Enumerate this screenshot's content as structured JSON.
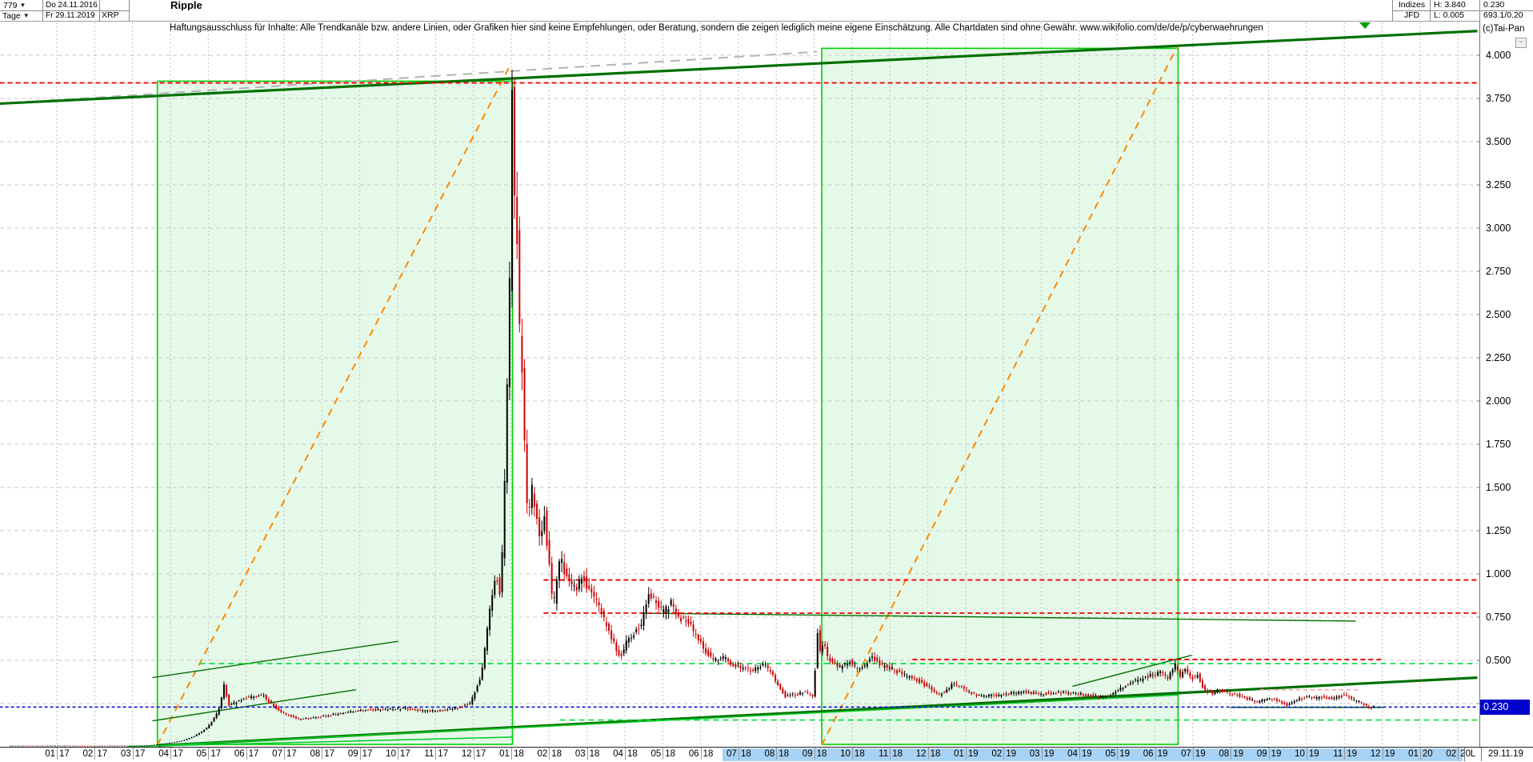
{
  "header": {
    "bar_count": "779",
    "period": "Tage",
    "date_from": "Do 24.11.2016",
    "date_to": "Fr 29.11.2019",
    "symbol": "XRP",
    "title": "Ripple",
    "right_panel": {
      "row1_label": "Indizes",
      "row2_label": "JFD",
      "high": "H: 3.840",
      "low": "L: 0.005",
      "last": "0.230",
      "extra": "693.1/0.20"
    },
    "copyright": "(c)Tai-Pan",
    "collapse_icon_glyph": "−"
  },
  "disclaimer": "Haftungsausschluss für Inhalte: Alle Trendkanäle bzw. andere Linien, oder Grafiken hier sind keine Empfehlungen, oder Beratung, sondern die zeigen lediglich meine eigene Einschätzung. Alle Chartdaten sind ohne Gewähr.  www.wikifolio.com/de/de/p/cyberwaehrungen",
  "status_bar": {
    "scale_toggle": "L",
    "current_date": "29.11.19"
  },
  "price_axis": {
    "ticks": [
      "4.000",
      "3.750",
      "3.500",
      "3.250",
      "3.000",
      "2.750",
      "2.500",
      "2.250",
      "2.000",
      "1.750",
      "1.500",
      "1.250",
      "1.000",
      "0.750",
      "0.500",
      "0.250"
    ],
    "last_price_badge": "0.230"
  },
  "chart_data": {
    "type": "candlestick",
    "title": "Ripple (XRP) Tageschart",
    "instrument": "Ripple",
    "symbol": "XRP",
    "period": "Tage",
    "date_from": "24.11.2016",
    "date_to": "29.11.2019",
    "high": 3.84,
    "low": 0.005,
    "last": 0.23,
    "ylim": [
      0,
      4.2
    ],
    "ytick_step": 0.25,
    "grid": true,
    "months": [
      "01.17",
      "02.17",
      "03.17",
      "04.17",
      "05.17",
      "06.17",
      "07.17",
      "08.17",
      "09.17",
      "10.17",
      "11.17",
      "12.17",
      "01.18",
      "02.18",
      "03.18",
      "04.18",
      "05.18",
      "06.18",
      "07.18",
      "08.18",
      "09.18",
      "10.18",
      "11.18",
      "12.18",
      "01.19",
      "02.19",
      "03.19",
      "04.19",
      "05.19",
      "06.19",
      "07.19",
      "08.19",
      "09.19",
      "10.19",
      "11.19",
      "12.19",
      "01.20",
      "02.20"
    ],
    "keyframes_day_price": [
      [
        0,
        0.006
      ],
      [
        40,
        0.0065
      ],
      [
        80,
        0.006
      ],
      [
        110,
        0.007
      ],
      [
        127,
        0.02
      ],
      [
        140,
        0.035
      ],
      [
        152,
        0.07
      ],
      [
        160,
        0.11
      ],
      [
        170,
        0.22
      ],
      [
        174,
        0.36
      ],
      [
        178,
        0.24
      ],
      [
        190,
        0.28
      ],
      [
        205,
        0.3
      ],
      [
        220,
        0.2
      ],
      [
        234,
        0.16
      ],
      [
        250,
        0.17
      ],
      [
        265,
        0.19
      ],
      [
        281,
        0.21
      ],
      [
        300,
        0.215
      ],
      [
        320,
        0.22
      ],
      [
        335,
        0.205
      ],
      [
        350,
        0.21
      ],
      [
        365,
        0.23
      ],
      [
        372,
        0.25
      ],
      [
        381,
        0.42
      ],
      [
        385,
        0.62
      ],
      [
        389,
        0.85
      ],
      [
        393,
        1.02
      ],
      [
        396,
        0.88
      ],
      [
        399,
        1.25
      ],
      [
        401,
        1.85
      ],
      [
        403,
        2.35
      ],
      [
        405,
        3.1
      ],
      [
        406,
        3.75
      ],
      [
        408,
        3.2
      ],
      [
        410,
        2.95
      ],
      [
        412,
        2.4
      ],
      [
        414,
        2.15
      ],
      [
        416,
        1.75
      ],
      [
        419,
        1.25
      ],
      [
        421,
        1.55
      ],
      [
        424,
        1.4
      ],
      [
        428,
        1.2
      ],
      [
        432,
        1.35
      ],
      [
        436,
        1.05
      ],
      [
        439,
        0.8
      ],
      [
        442,
        0.95
      ],
      [
        445,
        1.1
      ],
      [
        448,
        1.02
      ],
      [
        452,
        0.95
      ],
      [
        458,
        0.92
      ],
      [
        463,
        0.98
      ],
      [
        470,
        0.88
      ],
      [
        477,
        0.8
      ],
      [
        483,
        0.68
      ],
      [
        489,
        0.58
      ],
      [
        493,
        0.51
      ],
      [
        499,
        0.62
      ],
      [
        505,
        0.66
      ],
      [
        510,
        0.7
      ],
      [
        516,
        0.9
      ],
      [
        521,
        0.84
      ],
      [
        528,
        0.78
      ],
      [
        534,
        0.83
      ],
      [
        541,
        0.75
      ],
      [
        548,
        0.72
      ],
      [
        556,
        0.62
      ],
      [
        563,
        0.54
      ],
      [
        570,
        0.5
      ],
      [
        577,
        0.52
      ],
      [
        584,
        0.47
      ],
      [
        592,
        0.45
      ],
      [
        600,
        0.44
      ],
      [
        608,
        0.48
      ],
      [
        615,
        0.43
      ],
      [
        622,
        0.34
      ],
      [
        626,
        0.29
      ],
      [
        634,
        0.3
      ],
      [
        642,
        0.32
      ],
      [
        648,
        0.29
      ],
      [
        650,
        0.45
      ],
      [
        652,
        0.66
      ],
      [
        654,
        0.55
      ],
      [
        657,
        0.6
      ],
      [
        660,
        0.52
      ],
      [
        664,
        0.49
      ],
      [
        670,
        0.46
      ],
      [
        678,
        0.49
      ],
      [
        684,
        0.45
      ],
      [
        690,
        0.47
      ],
      [
        696,
        0.52
      ],
      [
        703,
        0.47
      ],
      [
        712,
        0.45
      ],
      [
        720,
        0.42
      ],
      [
        728,
        0.4
      ],
      [
        736,
        0.37
      ],
      [
        744,
        0.33
      ],
      [
        750,
        0.3
      ],
      [
        756,
        0.33
      ],
      [
        762,
        0.37
      ],
      [
        768,
        0.34
      ],
      [
        774,
        0.32
      ],
      [
        780,
        0.3
      ],
      [
        790,
        0.295
      ],
      [
        799,
        0.3
      ],
      [
        810,
        0.31
      ],
      [
        820,
        0.32
      ],
      [
        830,
        0.305
      ],
      [
        840,
        0.31
      ],
      [
        850,
        0.315
      ],
      [
        858,
        0.31
      ],
      [
        868,
        0.3
      ],
      [
        878,
        0.29
      ],
      [
        888,
        0.3
      ],
      [
        896,
        0.34
      ],
      [
        904,
        0.37
      ],
      [
        912,
        0.39
      ],
      [
        920,
        0.41
      ],
      [
        928,
        0.43
      ],
      [
        934,
        0.4
      ],
      [
        940,
        0.47
      ],
      [
        944,
        0.41
      ],
      [
        948,
        0.45
      ],
      [
        953,
        0.39
      ],
      [
        958,
        0.42
      ],
      [
        963,
        0.33
      ],
      [
        970,
        0.31
      ],
      [
        976,
        0.33
      ],
      [
        982,
        0.31
      ],
      [
        990,
        0.3
      ],
      [
        998,
        0.28
      ],
      [
        1006,
        0.26
      ],
      [
        1014,
        0.28
      ],
      [
        1022,
        0.27
      ],
      [
        1030,
        0.24
      ],
      [
        1038,
        0.27
      ],
      [
        1046,
        0.29
      ],
      [
        1054,
        0.28
      ],
      [
        1060,
        0.29
      ],
      [
        1066,
        0.275
      ],
      [
        1072,
        0.29
      ],
      [
        1077,
        0.3
      ],
      [
        1082,
        0.275
      ],
      [
        1088,
        0.26
      ],
      [
        1092,
        0.245
      ],
      [
        1096,
        0.225
      ],
      [
        1100,
        0.23
      ]
    ],
    "annotations": [
      {
        "name": "trend-box-2017",
        "type": "box",
        "d1": 119,
        "d2": 405,
        "v1": 0.014,
        "v2": 3.85
      },
      {
        "name": "trend-box-2019",
        "type": "box",
        "d1": 654,
        "d2": 941,
        "v1": 0.014,
        "v2": 4.04
      },
      {
        "name": "orange-diagonal-2017",
        "type": "line",
        "style": "orange-dash",
        "p": [
          [
            119,
            0.01
          ],
          [
            403,
            3.94
          ]
        ]
      },
      {
        "name": "orange-diagonal-2019",
        "type": "line",
        "style": "orange-dash",
        "p": [
          [
            654,
            0.01
          ],
          [
            941,
            4.06
          ]
        ]
      },
      {
        "name": "gray-old-trendline",
        "type": "line",
        "style": "gray-dash",
        "p": [
          [
            -8,
            3.72
          ],
          [
            650,
            4.02
          ]
        ]
      },
      {
        "name": "upper-channel-thick",
        "type": "line",
        "style": "thick-green",
        "p": [
          [
            -8,
            3.72
          ],
          [
            1182,
            4.14
          ]
        ]
      },
      {
        "name": "lower-channel-thick",
        "type": "line",
        "style": "thick-green",
        "p": [
          [
            119,
            0.007
          ],
          [
            1182,
            0.4
          ]
        ]
      },
      {
        "name": "lime-support-long",
        "type": "line",
        "style": "lime",
        "p": [
          [
            119,
            0.007
          ],
          [
            941,
            0.3
          ]
        ]
      },
      {
        "name": "lime-support-short",
        "type": "line",
        "style": "lime",
        "p": [
          [
            95,
            0.001
          ],
          [
            405,
            0.056
          ]
        ]
      },
      {
        "name": "channel-2017-upper",
        "type": "line",
        "style": "green",
        "p": [
          [
            115,
            0.4
          ],
          [
            313,
            0.61
          ]
        ]
      },
      {
        "name": "channel-2017-lower",
        "type": "line",
        "style": "green",
        "p": [
          [
            115,
            0.15
          ],
          [
            279,
            0.33
          ]
        ]
      },
      {
        "name": "resistance-075",
        "type": "line",
        "style": "green",
        "p": [
          [
            508,
            0.773
          ],
          [
            1084,
            0.727
          ]
        ]
      },
      {
        "name": "rally-2019-line",
        "type": "line",
        "style": "green",
        "p": [
          [
            856,
            0.35
          ],
          [
            952,
            0.53
          ]
        ]
      },
      {
        "name": "high-line-384",
        "type": "hline",
        "style": "red-dash",
        "v": 3.84,
        "d1": -8,
        "d2": 1182
      },
      {
        "name": "level-096",
        "type": "hline",
        "style": "red-dash",
        "v": 0.965,
        "d1": 430,
        "d2": 1182
      },
      {
        "name": "level-077",
        "type": "hline",
        "style": "red-dash",
        "v": 0.773,
        "d1": 430,
        "d2": 1182
      },
      {
        "name": "level-050",
        "type": "hline",
        "style": "red-dash",
        "v": 0.505,
        "d1": 727,
        "d2": 1107
      },
      {
        "name": "level-pink-033",
        "type": "hline",
        "style": "pink-dash",
        "v": 0.33,
        "d1": 1007,
        "d2": 1088
      },
      {
        "name": "lime-dashed-048",
        "type": "hline",
        "style": "lime-dash",
        "v": 0.481,
        "d1": 153,
        "d2": 1182
      },
      {
        "name": "lime-dashed-015",
        "type": "hline",
        "style": "lime-dash",
        "v": 0.155,
        "d1": 443,
        "d2": 1182
      },
      {
        "name": "green-seg-023",
        "type": "hline",
        "style": "green",
        "v": 0.228,
        "d1": 983,
        "d2": 1107
      },
      {
        "name": "last-price-line",
        "type": "hline",
        "style": "blue-dash",
        "v": 0.23,
        "d1": -8,
        "d2": 1182
      },
      {
        "name": "down-triangle-marker",
        "type": "marker",
        "x": 1706,
        "y": 28
      }
    ],
    "colors": {
      "up_candle": "#000000",
      "down_candle": "#cc0000",
      "box_fill": "rgba(0,200,40,0.10)",
      "box_stroke": "#00d000",
      "grid": "#c9c9c9",
      "badge": "#0000cc",
      "highlight": "#a8d2f4"
    }
  }
}
